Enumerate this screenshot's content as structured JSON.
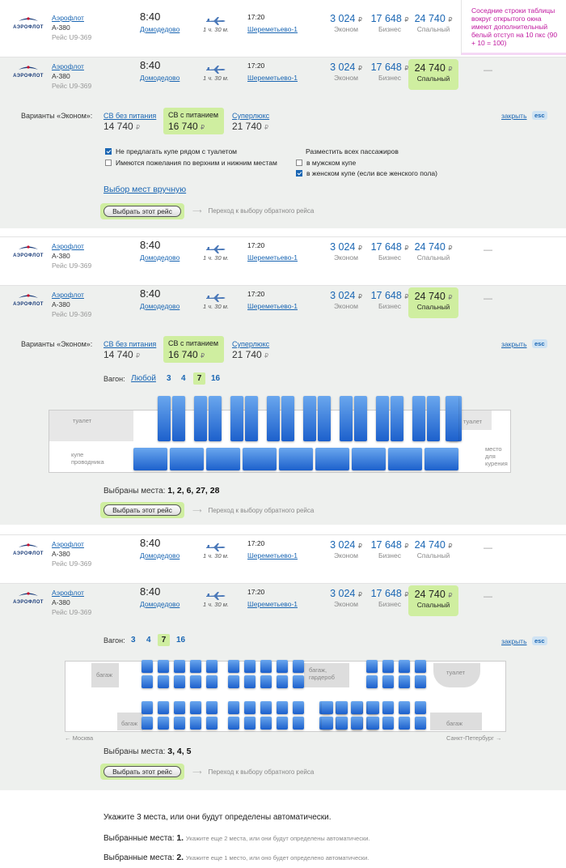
{
  "note": "Соседние строки таблицы вокруг открытого окна имеют дополнительный белый отступ на 10 пкс (90 + 10 = 100)",
  "flight": {
    "logo": "АЭРОФЛОТ",
    "airline": "Аэрофлот",
    "plane": "A-380",
    "route": "Рейс U9-369",
    "dep_time": "8:40",
    "dep_airport": "Домодедово",
    "duration": "1 ч. 30 м.",
    "arr_time": "17:20",
    "arr_airport": "Шереметьево-1",
    "price_econom": "3 024",
    "price_business": "17 648",
    "price_sleep": "24 740",
    "cur": "₽",
    "cls_econom": "Эконом",
    "cls_business": "Бизнес",
    "cls_sleep": "Спальный",
    "dash": "—"
  },
  "options": {
    "label": "Варианты «Эконом»:",
    "opt1": "СВ без питания",
    "opt1_price": "14 740",
    "opt2": "СВ с питанием",
    "opt2_price": "16 740",
    "opt3": "Суперлюкс",
    "opt3_price": "21 740",
    "close": "закрыть",
    "esc": "esc"
  },
  "prefs": {
    "c1": "Не предлагать купе рядом с туалетом",
    "c2": "Имеются пожелания по верхним и нижним местам",
    "place_all": "Разместить всех пассажиров",
    "c3": "в мужском купе",
    "c4": "в женском купе (если все женского пола)"
  },
  "manual": "Выбор мест вручную",
  "select_btn": "Выбрать этот рейс",
  "next": "Переход к выбору обратного рейса",
  "next_arrow": "⟶",
  "wagon": {
    "label": "Вагон:",
    "any": "Любой",
    "n3": "3",
    "n4": "4",
    "n7": "7",
    "n16": "16"
  },
  "coach1": {
    "toilet_left": "туалет",
    "conductor": "купе проводника",
    "toilet_right": "туалет",
    "smoke": "место для курения"
  },
  "selected1": {
    "label": "Выбраны места:",
    "value": "1, 2, 6, 27, 28"
  },
  "coach2": {
    "luggage1": "багаж",
    "luggage2": "багаж",
    "luggage_wardrobe": "багаж, гардероб",
    "toilet": "туалет",
    "luggage3": "багаж",
    "moscow": "← Москва",
    "spb": "Санкт-Петербург →"
  },
  "selected2": {
    "label": "Выбраны места:",
    "value": "3, 4, 5"
  },
  "footer": {
    "l1": "Укажите 3 места, или они будут определены автоматически.",
    "l2_label": "Выбранные места:",
    "l2_value": "1.",
    "l2_note": "Укажите еще 2 места, или они будут определены автоматически.",
    "l3_label": "Выбранные места:",
    "l3_value": "2.",
    "l3_note": "Укажите еще 1 место, или оно будет определено автоматически."
  }
}
